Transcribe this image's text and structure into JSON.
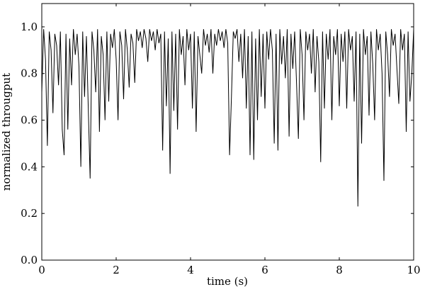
{
  "chart_data": {
    "type": "line",
    "xlabel": "time (s)",
    "ylabel": "normalized througput",
    "color": "#000000",
    "xlim": [
      0,
      10
    ],
    "xticks": [
      0,
      2,
      4,
      6,
      8,
      10
    ],
    "ylim": [
      0,
      1.1
    ],
    "yticks": [
      {
        "value": 0,
        "label": "0.0"
      },
      0.2,
      0.4,
      0.6,
      0.8,
      {
        "value": 1,
        "label": "1.0"
      }
    ],
    "grid": false,
    "x": [
      0,
      0.05,
      0.1,
      0.15,
      0.2,
      0.25,
      0.3,
      0.35,
      0.4,
      0.45,
      0.5,
      0.55,
      0.6,
      0.65,
      0.7,
      0.75,
      0.8,
      0.85,
      0.9,
      0.95,
      1,
      1.05,
      1.1,
      1.15,
      1.2,
      1.25,
      1.3,
      1.35,
      1.4,
      1.45,
      1.5,
      1.55,
      1.6,
      1.65,
      1.7,
      1.75,
      1.8,
      1.85,
      1.9,
      1.95,
      2,
      2.05,
      2.1,
      2.15,
      2.2,
      2.25,
      2.3,
      2.35,
      2.4,
      2.45,
      2.5,
      2.55,
      2.6,
      2.65,
      2.7,
      2.75,
      2.8,
      2.85,
      2.9,
      2.95,
      3,
      3.05,
      3.1,
      3.15,
      3.2,
      3.25,
      3.3,
      3.35,
      3.4,
      3.45,
      3.5,
      3.55,
      3.6,
      3.65,
      3.7,
      3.75,
      3.8,
      3.85,
      3.9,
      3.95,
      4,
      4.05,
      4.1,
      4.15,
      4.2,
      4.25,
      4.3,
      4.35,
      4.4,
      4.45,
      4.5,
      4.55,
      4.6,
      4.65,
      4.7,
      4.75,
      4.8,
      4.85,
      4.9,
      4.95,
      5,
      5.05,
      5.1,
      5.15,
      5.2,
      5.25,
      5.3,
      5.35,
      5.4,
      5.45,
      5.5,
      5.55,
      5.6,
      5.65,
      5.7,
      5.75,
      5.8,
      5.85,
      5.9,
      5.95,
      6,
      6.05,
      6.1,
      6.15,
      6.2,
      6.25,
      6.3,
      6.35,
      6.4,
      6.45,
      6.5,
      6.55,
      6.6,
      6.65,
      6.7,
      6.75,
      6.8,
      6.85,
      6.9,
      6.95,
      7,
      7.05,
      7.1,
      7.15,
      7.2,
      7.25,
      7.3,
      7.35,
      7.4,
      7.45,
      7.5,
      7.55,
      7.6,
      7.65,
      7.7,
      7.75,
      7.8,
      7.85,
      7.9,
      7.95,
      8,
      8.05,
      8.1,
      8.15,
      8.2,
      8.25,
      8.3,
      8.35,
      8.4,
      8.45,
      8.5,
      8.55,
      8.6,
      8.65,
      8.7,
      8.75,
      8.8,
      8.85,
      8.9,
      8.95,
      9,
      9.05,
      9.1,
      9.15,
      9.2,
      9.25,
      9.3,
      9.35,
      9.4,
      9.45,
      9.5,
      9.55,
      9.6,
      9.65,
      9.7,
      9.75,
      9.8,
      9.85,
      9.9,
      9.95,
      10
    ],
    "values": [
      0.72,
      0.99,
      0.86,
      0.49,
      0.98,
      0.9,
      0.63,
      0.97,
      0.92,
      0.75,
      0.98,
      0.56,
      0.45,
      0.97,
      0.56,
      0.95,
      0.75,
      0.99,
      0.88,
      0.97,
      0.83,
      0.4,
      0.98,
      0.7,
      0.96,
      0.65,
      0.35,
      0.98,
      0.9,
      0.72,
      0.99,
      0.55,
      0.96,
      0.88,
      0.6,
      0.98,
      0.68,
      0.97,
      0.91,
      0.99,
      0.86,
      0.6,
      0.98,
      0.92,
      0.69,
      0.99,
      0.9,
      0.74,
      0.97,
      0.93,
      0.76,
      0.99,
      0.94,
      0.98,
      0.91,
      0.99,
      0.95,
      0.85,
      0.99,
      0.94,
      0.98,
      0.9,
      0.99,
      0.93,
      0.97,
      0.47,
      0.98,
      0.66,
      0.95,
      0.37,
      0.98,
      0.64,
      0.97,
      0.56,
      0.99,
      0.88,
      0.96,
      0.75,
      0.99,
      0.9,
      0.97,
      0.65,
      0.98,
      0.55,
      0.96,
      0.88,
      0.8,
      0.99,
      0.92,
      0.97,
      0.89,
      0.99,
      0.8,
      0.97,
      0.92,
      0.99,
      0.94,
      0.98,
      0.91,
      0.99,
      0.93,
      0.45,
      0.7,
      0.98,
      0.95,
      0.99,
      0.85,
      0.97,
      0.78,
      0.99,
      0.65,
      0.96,
      0.45,
      0.98,
      0.43,
      0.95,
      0.6,
      0.99,
      0.7,
      0.97,
      0.65,
      0.98,
      0.86,
      0.99,
      0.9,
      0.5,
      0.97,
      0.47,
      0.99,
      0.84,
      0.96,
      0.78,
      0.99,
      0.53,
      0.97,
      0.82,
      0.98,
      0.76,
      0.52,
      0.99,
      0.88,
      0.6,
      0.98,
      0.9,
      0.97,
      0.8,
      0.99,
      0.72,
      0.96,
      0.85,
      0.42,
      0.98,
      0.65,
      0.97,
      0.86,
      0.99,
      0.6,
      0.96,
      0.88,
      0.99,
      0.66,
      0.97,
      0.85,
      0.98,
      0.65,
      0.99,
      0.9,
      0.96,
      0.68,
      0.98,
      0.23,
      0.97,
      0.5,
      0.99,
      0.88,
      0.96,
      0.62,
      0.98,
      0.84,
      0.6,
      0.99,
      0.9,
      0.97,
      0.8,
      0.34,
      0.98,
      0.88,
      0.7,
      0.99,
      0.92,
      0.97,
      0.82,
      0.67,
      0.99,
      0.9,
      0.97,
      0.55,
      0.98,
      0.68,
      0.8,
      0.99
    ]
  }
}
